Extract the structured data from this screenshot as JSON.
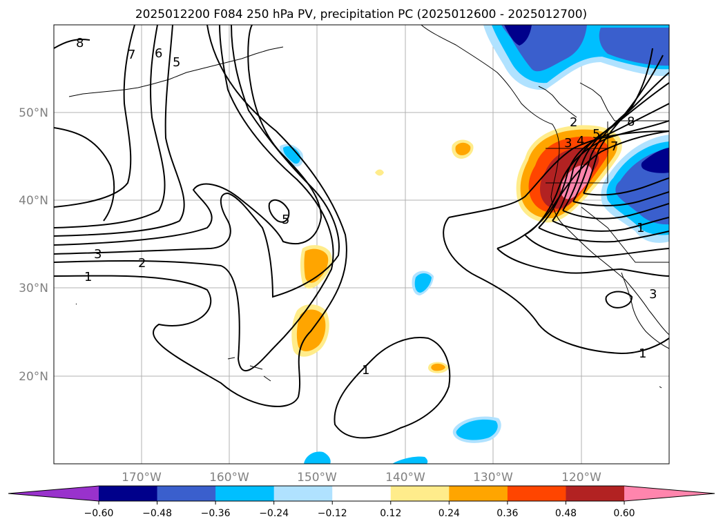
{
  "title": "2025012200 F084 250 hPa PV, precipitation PC (2025012600 - 2025012700)",
  "lat_labels": [
    "50°N",
    "40°N",
    "30°N",
    "20°N"
  ],
  "lon_labels": [
    "170°W",
    "160°W",
    "150°W",
    "140°W",
    "130°W",
    "120°W"
  ],
  "colorbar": {
    "ticks": [
      "−0.60",
      "−0.48",
      "−0.36",
      "−0.24",
      "−0.12",
      "0.12",
      "0.24",
      "0.36",
      "0.48",
      "0.60"
    ],
    "colors": [
      "#9932cc",
      "#00008b",
      "#3a5fcd",
      "#00bfff",
      "#b0e2ff",
      "#ffffff",
      "#ffec8b",
      "#ffa500",
      "#ff4500",
      "#b22222",
      "#ff85ad"
    ]
  },
  "contour_labels": [
    "8",
    "7",
    "6",
    "5",
    "3",
    "2",
    "1",
    "5",
    "1",
    "1",
    "2",
    "3",
    "4",
    "5",
    "7",
    "8",
    "3",
    "1"
  ]
}
